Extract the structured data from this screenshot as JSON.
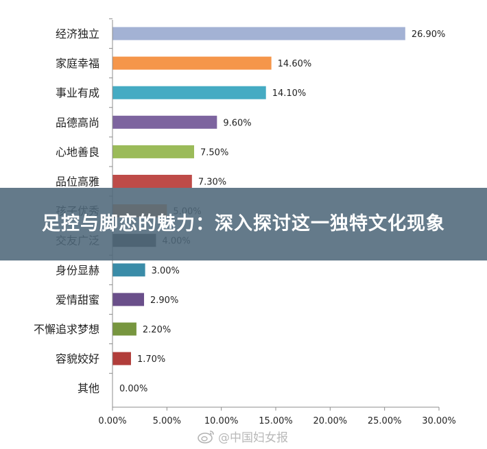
{
  "chart_data": {
    "type": "bar",
    "orientation": "horizontal",
    "categories": [
      "经济独立",
      "家庭幸福",
      "事业有成",
      "品德高尚",
      "心地善良",
      "品位高雅",
      "孩子优秀",
      "交友广泛",
      "身份显赫",
      "爱情甜蜜",
      "不懈追求梦想",
      "容貌姣好",
      "其他"
    ],
    "values": [
      26.9,
      14.6,
      14.1,
      9.6,
      7.5,
      7.3,
      5.0,
      4.0,
      3.0,
      2.9,
      2.2,
      1.7,
      0.0
    ],
    "data_labels": [
      "26.90%",
      "14.60%",
      "14.10%",
      "9.60%",
      "7.50%",
      "7.30%",
      "5.00%",
      "4.00%",
      "3.00%",
      "2.90%",
      "2.20%",
      "1.70%",
      "0.00%"
    ],
    "colors": [
      "#a3b2d4",
      "#f5964a",
      "#45abc3",
      "#7d649f",
      "#9bbb59",
      "#be4b48",
      "#f5964a",
      "#4a4a4a",
      "#3a8ca8",
      "#6a4f8a",
      "#77963f",
      "#b13d3a",
      "#999999"
    ],
    "xlim": [
      0,
      30
    ],
    "x_ticks": [
      "0.00%",
      "5.00%",
      "10.00%",
      "15.00%",
      "20.00%",
      "25.00%",
      "30.00%"
    ],
    "grid": false,
    "legend": "none"
  },
  "banner": {
    "title": "足控与脚恋的魅力：深入探讨这一独特文化现象"
  },
  "watermark": {
    "text": "@中国妇女报",
    "icon": "weibo-icon"
  }
}
